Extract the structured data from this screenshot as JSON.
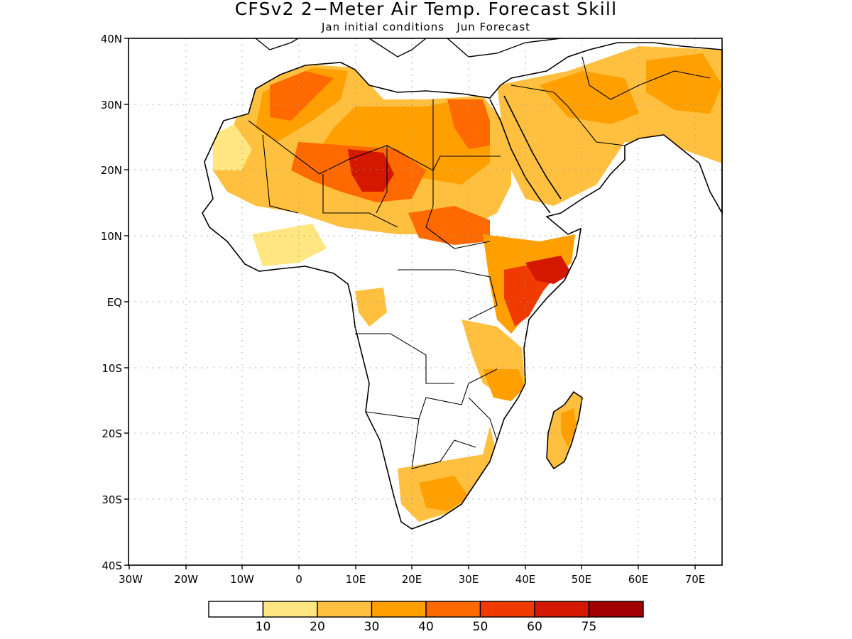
{
  "title": "CFSv2 2−Meter Air Temp. Forecast Skill",
  "subtitle": "Jan initial conditions   Jun Forecast",
  "map": {
    "region": "Africa",
    "lon_range": [
      -30,
      75
    ],
    "lat_range": [
      -40,
      40
    ],
    "grid": "dotted",
    "lat_ticks": [
      "40N",
      "30N",
      "20N",
      "10N",
      "EQ",
      "10S",
      "20S",
      "30S",
      "40S"
    ],
    "lon_ticks": [
      "30W",
      "20W",
      "10W",
      "0",
      "10E",
      "20E",
      "30E",
      "40E",
      "50E",
      "60E",
      "70E"
    ]
  },
  "colorbar": {
    "labels": [
      "10",
      "20",
      "30",
      "40",
      "50",
      "60",
      "75"
    ],
    "colors": [
      "#ffffff",
      "#ffe680",
      "#ffc040",
      "#ffa000",
      "#ff6a00",
      "#f03a00",
      "#d41800",
      "#a00000"
    ]
  },
  "colors": {
    "land_outline": "#000000",
    "ocean": "#ffffff"
  }
}
